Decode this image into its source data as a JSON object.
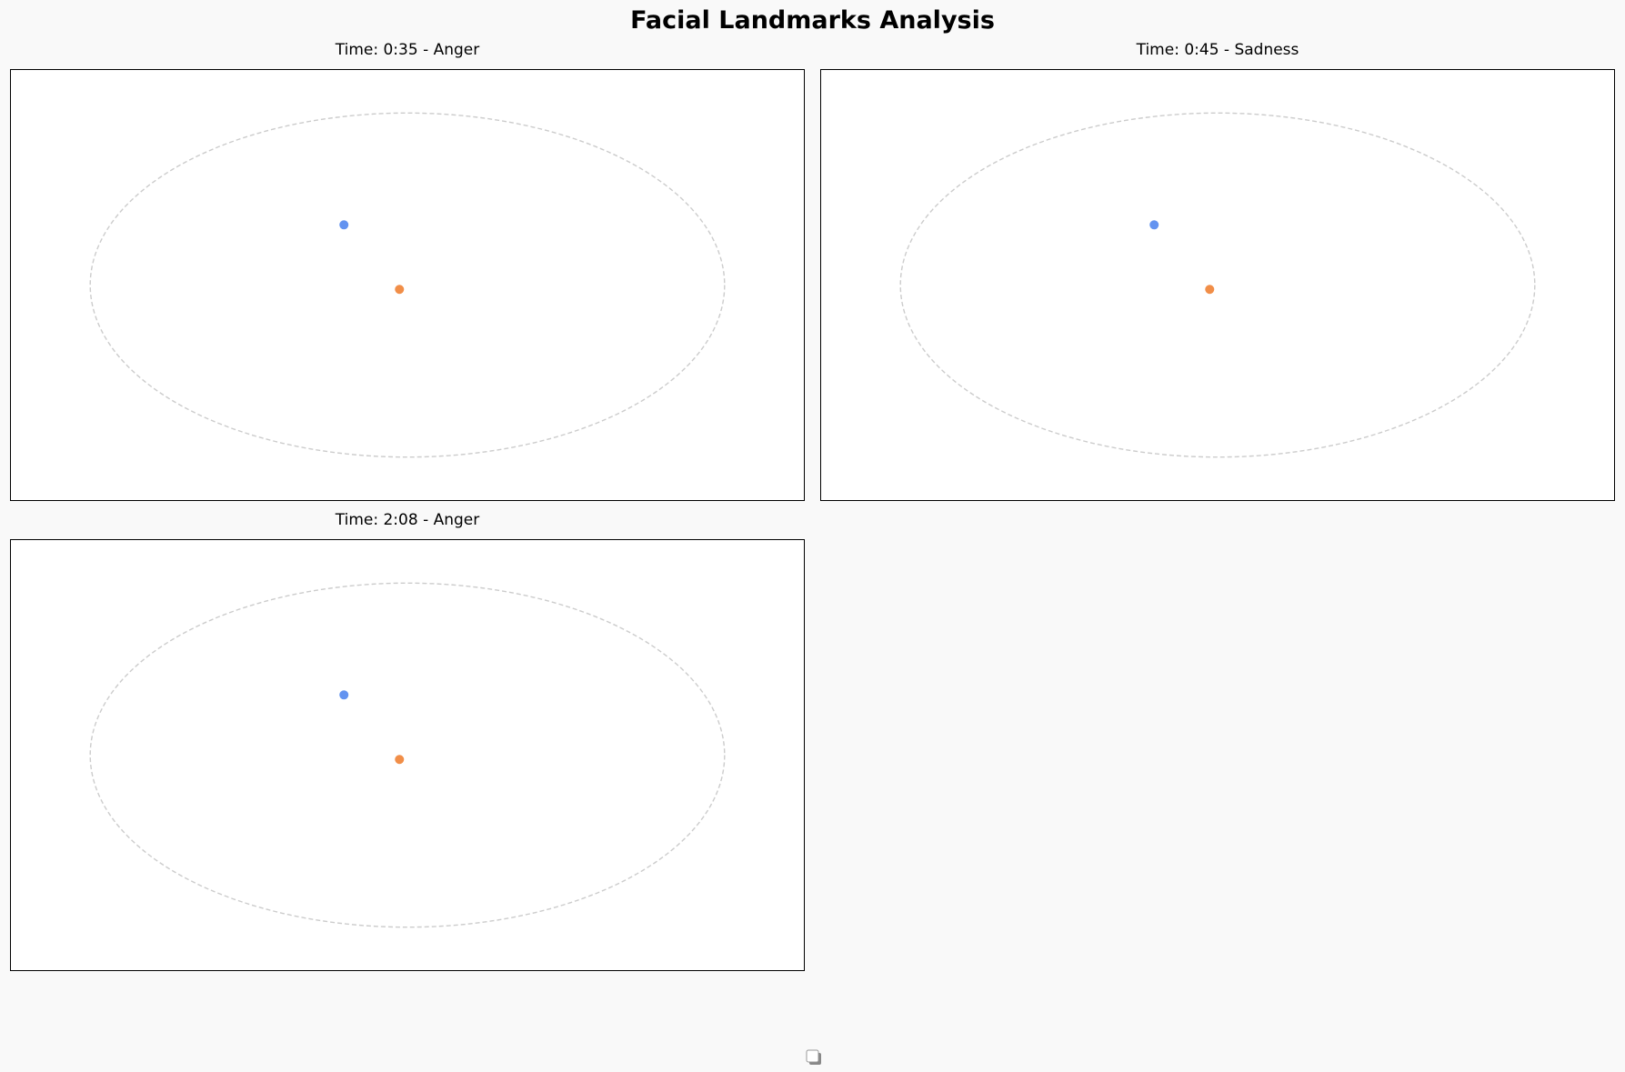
{
  "title": "Facial Landmarks Analysis",
  "colors": {
    "point_1": "#5b8def",
    "point_2": "#f0883e",
    "face_outline": "#cccccc",
    "background": "#f9f9f9"
  },
  "chart_data": [
    {
      "type": "scatter",
      "title": "Time: 0:35 - Anger",
      "xlim": [
        0,
        1
      ],
      "ylim": [
        0,
        1
      ],
      "grid": false,
      "face_outline": {
        "shape": "ellipse",
        "center": [
          0.5,
          0.5
        ],
        "radii": [
          0.4,
          0.4
        ]
      },
      "series": [
        {
          "x": [
            0.42
          ],
          "y": [
            0.36
          ]
        },
        {
          "x": [
            0.49
          ],
          "y": [
            0.51
          ]
        }
      ]
    },
    {
      "type": "scatter",
      "title": "Time: 0:45 - Sadness",
      "xlim": [
        0,
        1
      ],
      "ylim": [
        0,
        1
      ],
      "grid": false,
      "face_outline": {
        "shape": "ellipse",
        "center": [
          0.5,
          0.5
        ],
        "radii": [
          0.4,
          0.4
        ]
      },
      "series": [
        {
          "x": [
            0.42
          ],
          "y": [
            0.36
          ]
        },
        {
          "x": [
            0.49
          ],
          "y": [
            0.51
          ]
        }
      ]
    },
    {
      "type": "scatter",
      "title": "Time: 2:08 - Anger",
      "xlim": [
        0,
        1
      ],
      "ylim": [
        0,
        1
      ],
      "grid": false,
      "face_outline": {
        "shape": "ellipse",
        "center": [
          0.5,
          0.5
        ],
        "radii": [
          0.4,
          0.4
        ]
      },
      "series": [
        {
          "x": [
            0.42
          ],
          "y": [
            0.36
          ]
        },
        {
          "x": [
            0.49
          ],
          "y": [
            0.51
          ]
        }
      ]
    }
  ],
  "legend": {
    "icon": "legend-box-icon"
  }
}
